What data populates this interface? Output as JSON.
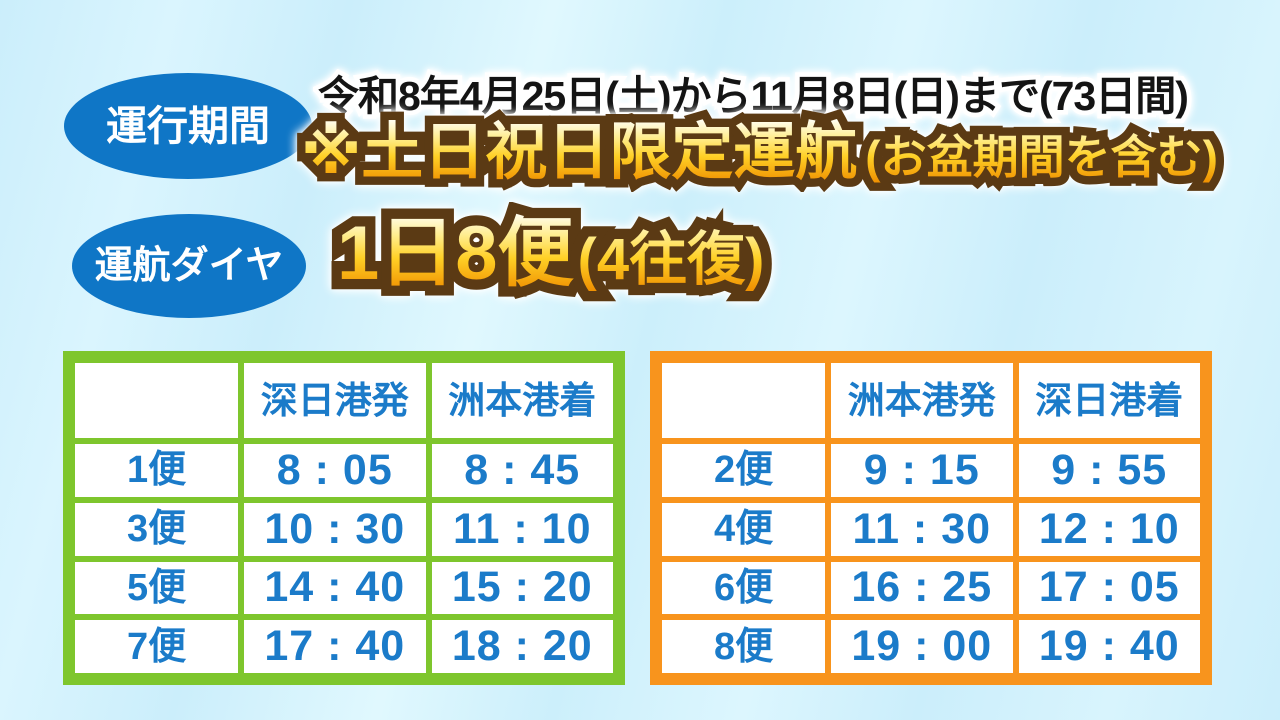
{
  "colors": {
    "background": "#cbeefb",
    "badge_blue": "#0f76c6",
    "table_green": "#7ec62d",
    "table_orange": "#f8941d",
    "cell_text_blue": "#1b7bc9",
    "gold_light": "#fffdf0",
    "gold_dark": "#f09202",
    "outline_brown": "#5b3a14",
    "headline_black": "#141414"
  },
  "period": {
    "badge": "運行期間",
    "date_range": "令和8年4月25日(土)から11月8日(日)まで(73日間)",
    "note_main": "※土日祝日限定運航",
    "note_sub": "(お盆期間を含む)"
  },
  "schedule": {
    "badge": "運航ダイヤ",
    "frequency_main": "1日8便",
    "frequency_sub": "(4往復)"
  },
  "outbound": {
    "col_headers": [
      "深日港発",
      "洲本港着"
    ],
    "rows": [
      {
        "flight": "1便",
        "dep": "8 : 05",
        "arr": "8 : 45"
      },
      {
        "flight": "3便",
        "dep": "10 : 30",
        "arr": "11 : 10"
      },
      {
        "flight": "5便",
        "dep": "14 : 40",
        "arr": "15 : 20"
      },
      {
        "flight": "7便",
        "dep": "17 : 40",
        "arr": "18 : 20"
      }
    ]
  },
  "inbound": {
    "col_headers": [
      "洲本港発",
      "深日港着"
    ],
    "rows": [
      {
        "flight": "2便",
        "dep": "9 : 15",
        "arr": "9 : 55"
      },
      {
        "flight": "4便",
        "dep": "11 : 30",
        "arr": "12 : 10"
      },
      {
        "flight": "6便",
        "dep": "16 : 25",
        "arr": "17 : 05"
      },
      {
        "flight": "8便",
        "dep": "19 : 00",
        "arr": "19 : 40"
      }
    ]
  }
}
